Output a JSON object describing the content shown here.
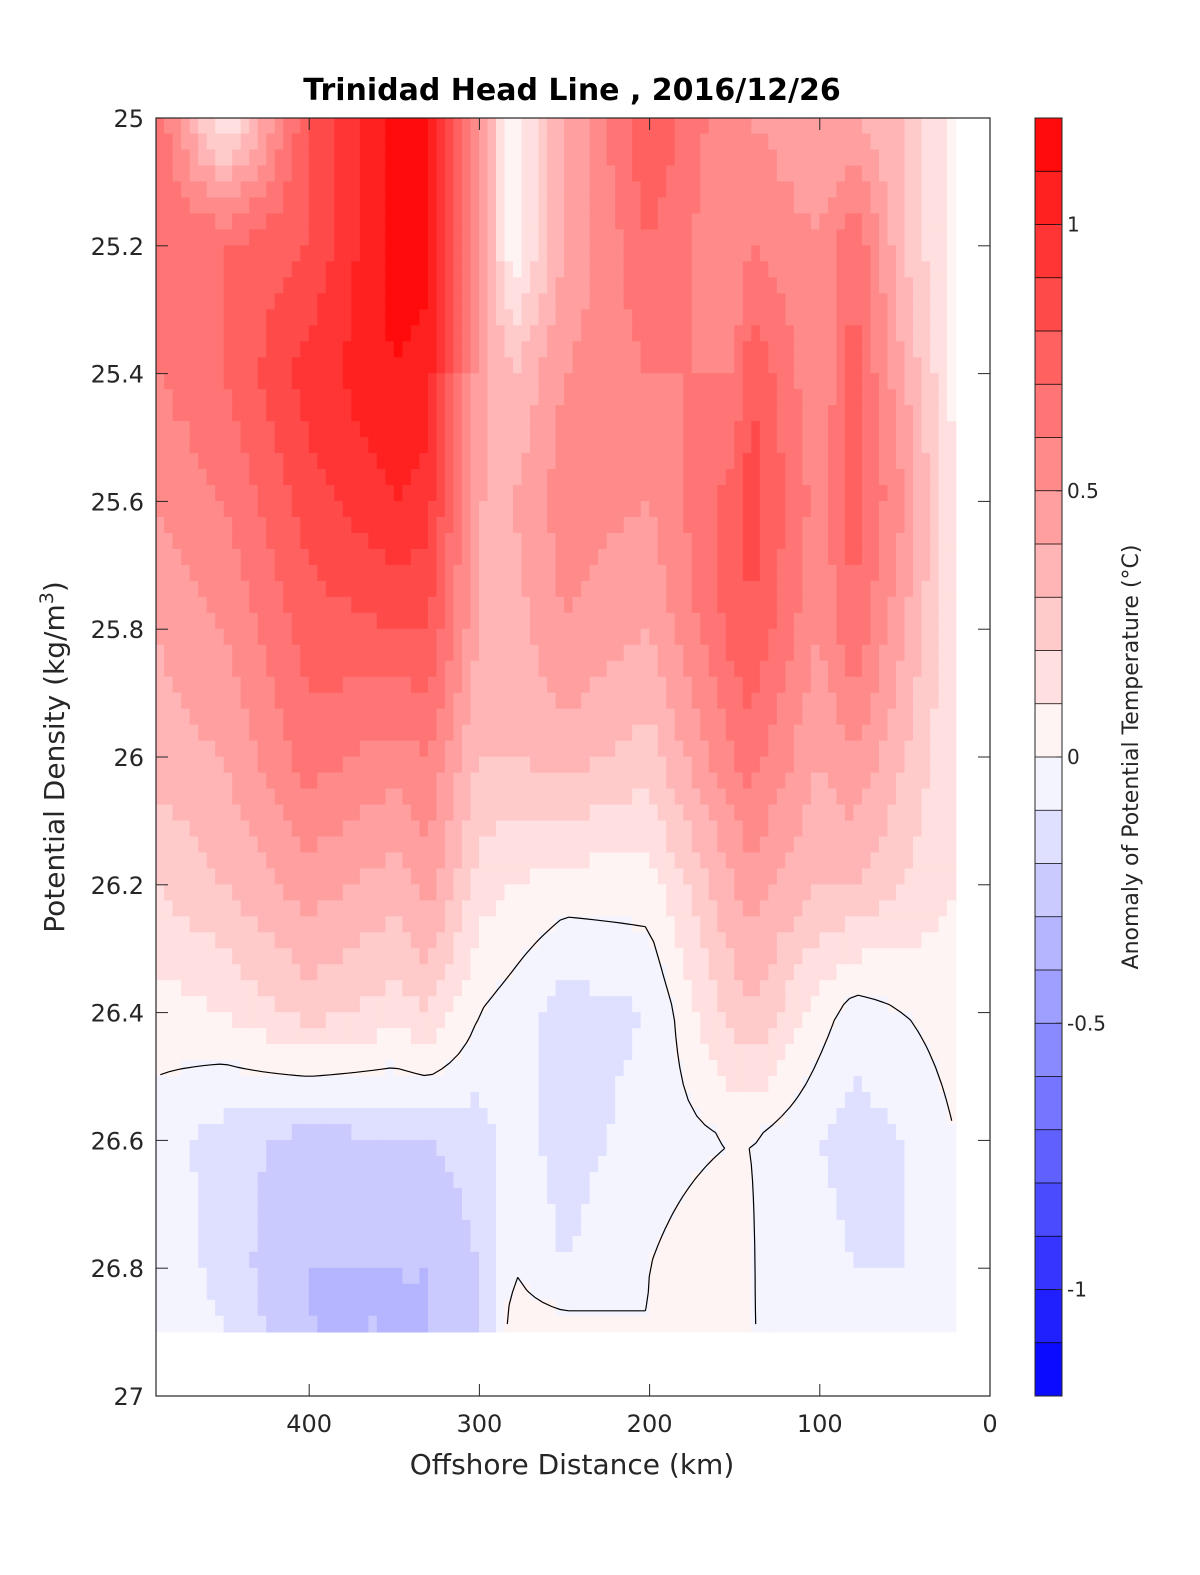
{
  "chart_data": {
    "type": "heatmap",
    "title": "Trinidad Head Line , 2016/12/26",
    "xlabel": "Offshore Distance (km)",
    "ylabel_main": "Potential Density (kg/m",
    "ylabel_sup": "3",
    "ylabel_end": ")",
    "colorbar_label": "Anomaly of Potential Temperature (°C)",
    "x_reversed": true,
    "y_reversed": true,
    "xlim": [
      0,
      490
    ],
    "ylim": [
      25,
      27
    ],
    "x_ticks": [
      400,
      300,
      200,
      100,
      0
    ],
    "x_tick_labels": [
      "400",
      "300",
      "200",
      "100",
      "0"
    ],
    "y_ticks": [
      25,
      25.2,
      25.4,
      25.6,
      25.8,
      26,
      26.2,
      26.4,
      26.6,
      26.8,
      27
    ],
    "y_tick_labels": [
      "25",
      "25.2",
      "25.4",
      "25.6",
      "25.8",
      "26",
      "26.2",
      "26.4",
      "26.6",
      "26.8",
      "27"
    ],
    "colorbar": {
      "range": [
        -1.2,
        1.2
      ],
      "step": 0.1,
      "ticks": [
        1,
        0.5,
        0,
        -0.5,
        -1
      ],
      "tick_labels": [
        "1",
        "0.5",
        "0",
        "-0.5",
        "-1"
      ],
      "colormap": "blue-white-red"
    },
    "data_extent": {
      "x": [
        20,
        490
      ],
      "y": [
        25,
        26.9
      ]
    },
    "x": [
      490,
      450,
      400,
      350,
      330,
      300,
      280,
      250,
      200,
      150,
      140,
      100,
      80,
      50,
      20
    ],
    "y": [
      25,
      25.2,
      25.4,
      25.6,
      25.8,
      26,
      26.2,
      26.4,
      26.6,
      26.8,
      26.9
    ],
    "values": [
      [
        0.7,
        0.05,
        0.8,
        1.15,
        1.15,
        0.5,
        0.0,
        0.4,
        0.8,
        0.5,
        0.5,
        0.4,
        0.4,
        0.3,
        0.05
      ],
      [
        0.7,
        0.7,
        0.8,
        1.15,
        1.15,
        0.5,
        0.0,
        0.4,
        0.7,
        0.5,
        0.6,
        0.5,
        0.7,
        0.3,
        0.05
      ],
      [
        0.6,
        0.7,
        0.95,
        1.1,
        1.05,
        0.45,
        0.3,
        0.5,
        0.6,
        0.6,
        0.8,
        0.5,
        0.75,
        0.4,
        0.05
      ],
      [
        0.5,
        0.6,
        0.85,
        1.0,
        0.95,
        0.4,
        0.4,
        0.55,
        0.5,
        0.75,
        0.85,
        0.55,
        0.75,
        0.5,
        0.1
      ],
      [
        0.4,
        0.5,
        0.75,
        0.8,
        0.8,
        0.4,
        0.35,
        0.5,
        0.4,
        0.75,
        0.8,
        0.5,
        0.7,
        0.4,
        0.1
      ],
      [
        0.35,
        0.4,
        0.65,
        0.55,
        0.6,
        0.3,
        0.3,
        0.35,
        0.25,
        0.6,
        0.65,
        0.4,
        0.5,
        0.3,
        0.1
      ],
      [
        0.2,
        0.3,
        0.45,
        0.35,
        0.45,
        0.15,
        0.1,
        0.05,
        0.05,
        0.4,
        0.45,
        0.3,
        0.3,
        0.2,
        0.1
      ],
      [
        0.05,
        0.1,
        0.25,
        0.15,
        0.2,
        0.0,
        -0.05,
        -0.15,
        -0.1,
        0.25,
        0.3,
        0.05,
        -0.05,
        0.0,
        0.05
      ],
      [
        -0.05,
        -0.15,
        -0.25,
        -0.2,
        -0.2,
        -0.15,
        -0.05,
        -0.15,
        -0.05,
        0.0,
        0.0,
        -0.1,
        -0.15,
        -0.1,
        0.0
      ],
      [
        0.0,
        -0.15,
        -0.3,
        -0.3,
        -0.3,
        -0.2,
        0.0,
        -0.1,
        0.0,
        0.1,
        0.0,
        -0.05,
        -0.1,
        -0.1,
        0.0
      ],
      [
        0.0,
        -0.1,
        -0.3,
        -0.3,
        -0.3,
        -0.2,
        0.05,
        0.05,
        0.0,
        0.05,
        0.0,
        0.0,
        -0.05,
        0.0,
        0.0
      ]
    ],
    "contour_levels": [
      0
    ]
  }
}
